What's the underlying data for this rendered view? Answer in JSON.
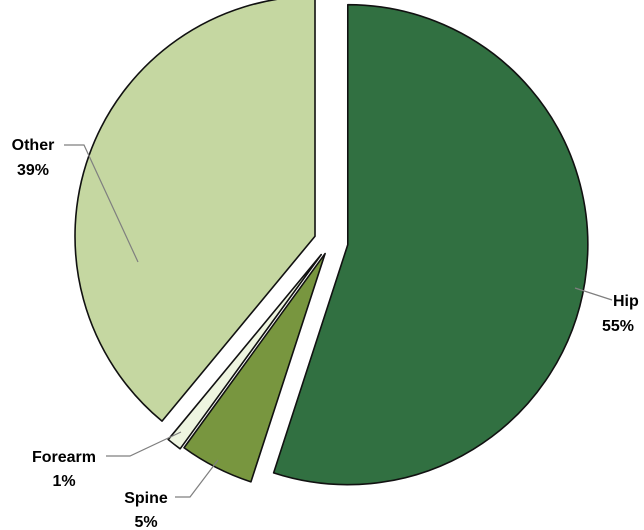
{
  "chart_data": {
    "type": "pie",
    "title": "",
    "start_angle_deg": 0,
    "direction": "clockwise",
    "exploded": true,
    "slices": [
      {
        "label": "Hip",
        "percent_label": "55%",
        "value": 55,
        "color": "#317041"
      },
      {
        "label": "Spine",
        "percent_label": "5%",
        "value": 5,
        "color": "#78963f"
      },
      {
        "label": "Forearm",
        "percent_label": "1%",
        "value": 1,
        "color": "#eef5e0"
      },
      {
        "label": "Other",
        "percent_label": "39%",
        "value": 39,
        "color": "#c5d7a1"
      }
    ]
  }
}
